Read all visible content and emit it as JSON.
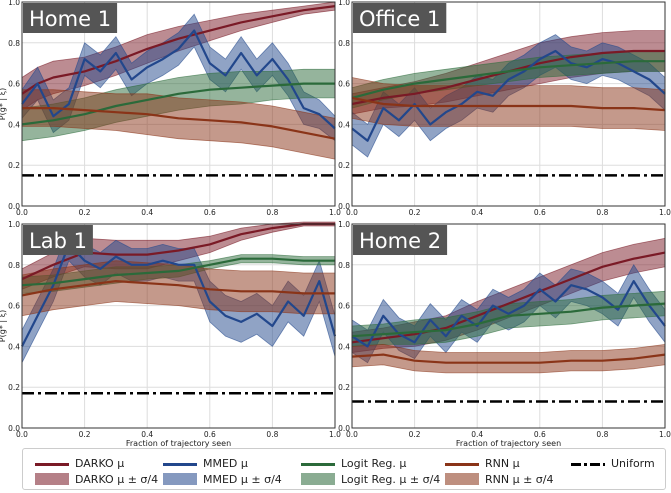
{
  "chart_data": [
    {
      "type": "line",
      "panel_title": "Home 1",
      "ylabel": "P(g* | ξ)",
      "xlabel": "",
      "xlim": [
        0,
        1
      ],
      "ylim": [
        0,
        1
      ],
      "xticks": [
        "0.0",
        "0.2",
        "0.4",
        "0.6",
        "0.8",
        "1.0"
      ],
      "yticks": [
        "0.0",
        "0.2",
        "0.4",
        "0.6",
        "0.8",
        "1.0"
      ],
      "grid": true,
      "series": [
        {
          "name": "DARKO",
          "x": [
            0,
            0.05,
            0.1,
            0.2,
            0.3,
            0.4,
            0.5,
            0.6,
            0.7,
            0.8,
            0.9,
            1.0
          ],
          "values": [
            0.55,
            0.6,
            0.63,
            0.66,
            0.71,
            0.77,
            0.82,
            0.86,
            0.9,
            0.93,
            0.96,
            0.98
          ],
          "band": [
            0.08,
            0.08,
            0.08,
            0.07,
            0.07,
            0.07,
            0.06,
            0.05,
            0.04,
            0.03,
            0.02,
            0.02
          ]
        },
        {
          "name": "MMED",
          "x": [
            0,
            0.05,
            0.1,
            0.15,
            0.2,
            0.25,
            0.3,
            0.35,
            0.4,
            0.45,
            0.5,
            0.55,
            0.6,
            0.65,
            0.7,
            0.75,
            0.8,
            0.85,
            0.9,
            0.95,
            1.0
          ],
          "values": [
            0.5,
            0.6,
            0.44,
            0.5,
            0.72,
            0.66,
            0.75,
            0.62,
            0.68,
            0.72,
            0.77,
            0.86,
            0.7,
            0.64,
            0.75,
            0.64,
            0.72,
            0.62,
            0.48,
            0.45,
            0.38
          ],
          "band": [
            0.07,
            0.08,
            0.08,
            0.08,
            0.08,
            0.08,
            0.08,
            0.08,
            0.08,
            0.08,
            0.08,
            0.08,
            0.08,
            0.08,
            0.08,
            0.08,
            0.08,
            0.08,
            0.08,
            0.07,
            0.06
          ]
        },
        {
          "name": "Logit Reg.",
          "x": [
            0,
            0.1,
            0.2,
            0.3,
            0.4,
            0.5,
            0.6,
            0.7,
            0.8,
            0.9,
            1.0
          ],
          "values": [
            0.4,
            0.42,
            0.45,
            0.49,
            0.52,
            0.55,
            0.57,
            0.58,
            0.59,
            0.6,
            0.6
          ],
          "band": [
            0.08,
            0.08,
            0.08,
            0.08,
            0.08,
            0.08,
            0.08,
            0.08,
            0.07,
            0.07,
            0.07
          ]
        },
        {
          "name": "RNN",
          "x": [
            0,
            0.1,
            0.2,
            0.3,
            0.4,
            0.5,
            0.6,
            0.7,
            0.8,
            0.9,
            1.0
          ],
          "values": [
            0.48,
            0.48,
            0.47,
            0.46,
            0.45,
            0.43,
            0.42,
            0.41,
            0.39,
            0.36,
            0.33
          ],
          "band": [
            0.09,
            0.09,
            0.09,
            0.09,
            0.1,
            0.1,
            0.1,
            0.1,
            0.1,
            0.1,
            0.1
          ]
        },
        {
          "name": "Uniform",
          "x": [
            0,
            1
          ],
          "values": [
            0.15,
            0.15
          ]
        }
      ]
    },
    {
      "type": "line",
      "panel_title": "Office 1",
      "ylabel": "",
      "xlabel": "",
      "xlim": [
        0,
        1
      ],
      "ylim": [
        0,
        1
      ],
      "xticks": [
        "0.0",
        "0.2",
        "0.4",
        "0.6",
        "0.8",
        "1.0"
      ],
      "yticks": [
        "0.0",
        "0.2",
        "0.4",
        "0.6",
        "0.8",
        "1.0"
      ],
      "grid": true,
      "series": [
        {
          "name": "DARKO",
          "x": [
            0,
            0.1,
            0.2,
            0.3,
            0.4,
            0.5,
            0.6,
            0.7,
            0.8,
            0.9,
            1.0
          ],
          "values": [
            0.5,
            0.53,
            0.55,
            0.58,
            0.62,
            0.66,
            0.7,
            0.73,
            0.75,
            0.76,
            0.76
          ],
          "band": [
            0.05,
            0.05,
            0.06,
            0.07,
            0.08,
            0.09,
            0.1,
            0.1,
            0.1,
            0.1,
            0.1
          ]
        },
        {
          "name": "MMED",
          "x": [
            0,
            0.05,
            0.1,
            0.15,
            0.2,
            0.25,
            0.3,
            0.35,
            0.4,
            0.45,
            0.5,
            0.55,
            0.6,
            0.65,
            0.7,
            0.75,
            0.8,
            0.85,
            0.9,
            0.95,
            1.0
          ],
          "values": [
            0.38,
            0.32,
            0.48,
            0.42,
            0.5,
            0.4,
            0.46,
            0.5,
            0.56,
            0.54,
            0.62,
            0.66,
            0.72,
            0.76,
            0.7,
            0.68,
            0.72,
            0.7,
            0.66,
            0.62,
            0.55
          ],
          "band": [
            0.08,
            0.08,
            0.08,
            0.08,
            0.08,
            0.08,
            0.08,
            0.08,
            0.08,
            0.08,
            0.08,
            0.08,
            0.08,
            0.08,
            0.08,
            0.08,
            0.08,
            0.08,
            0.08,
            0.08,
            0.08
          ]
        },
        {
          "name": "Logit Reg.",
          "x": [
            0,
            0.1,
            0.2,
            0.3,
            0.4,
            0.5,
            0.6,
            0.7,
            0.8,
            0.9,
            1.0
          ],
          "values": [
            0.53,
            0.57,
            0.6,
            0.62,
            0.64,
            0.66,
            0.68,
            0.69,
            0.7,
            0.71,
            0.71
          ],
          "band": [
            0.05,
            0.05,
            0.05,
            0.05,
            0.05,
            0.05,
            0.05,
            0.05,
            0.05,
            0.05,
            0.05
          ]
        },
        {
          "name": "RNN",
          "x": [
            0,
            0.1,
            0.2,
            0.3,
            0.4,
            0.5,
            0.6,
            0.7,
            0.8,
            0.9,
            1.0
          ],
          "values": [
            0.53,
            0.5,
            0.49,
            0.49,
            0.49,
            0.49,
            0.49,
            0.49,
            0.48,
            0.48,
            0.47
          ],
          "band": [
            0.1,
            0.1,
            0.1,
            0.1,
            0.1,
            0.1,
            0.1,
            0.1,
            0.1,
            0.1,
            0.1
          ]
        },
        {
          "name": "Uniform",
          "x": [
            0,
            1
          ],
          "values": [
            0.15,
            0.15
          ]
        }
      ]
    },
    {
      "type": "line",
      "panel_title": "Lab 1",
      "ylabel": "P(g* | ξ)",
      "xlabel": "Fraction of trajectory seen",
      "xlim": [
        0,
        1
      ],
      "ylim": [
        0,
        1
      ],
      "xticks": [
        "0.0",
        "0.2",
        "0.4",
        "0.6",
        "0.8",
        "1.0"
      ],
      "yticks": [
        "0.0",
        "0.2",
        "0.4",
        "0.6",
        "0.8",
        "1.0"
      ],
      "grid": true,
      "series": [
        {
          "name": "DARKO",
          "x": [
            0,
            0.1,
            0.2,
            0.3,
            0.4,
            0.5,
            0.6,
            0.7,
            0.8,
            0.9,
            1.0
          ],
          "values": [
            0.73,
            0.8,
            0.86,
            0.85,
            0.85,
            0.87,
            0.9,
            0.95,
            0.98,
            1.0,
            1.0
          ],
          "band": [
            0.05,
            0.06,
            0.07,
            0.07,
            0.07,
            0.05,
            0.04,
            0.03,
            0.02,
            0.01,
            0.01
          ]
        },
        {
          "name": "MMED",
          "x": [
            0,
            0.05,
            0.1,
            0.15,
            0.2,
            0.25,
            0.3,
            0.35,
            0.4,
            0.45,
            0.5,
            0.55,
            0.6,
            0.65,
            0.7,
            0.75,
            0.8,
            0.85,
            0.9,
            0.95,
            1.0
          ],
          "values": [
            0.4,
            0.55,
            0.7,
            0.9,
            0.82,
            0.78,
            0.84,
            0.8,
            0.8,
            0.82,
            0.8,
            0.8,
            0.62,
            0.55,
            0.52,
            0.56,
            0.5,
            0.62,
            0.55,
            0.72,
            0.45
          ],
          "band": [
            0.08,
            0.08,
            0.08,
            0.08,
            0.08,
            0.08,
            0.08,
            0.08,
            0.08,
            0.08,
            0.08,
            0.08,
            0.1,
            0.1,
            0.1,
            0.1,
            0.1,
            0.1,
            0.1,
            0.1,
            0.1
          ]
        },
        {
          "name": "Logit Reg.",
          "x": [
            0,
            0.1,
            0.2,
            0.3,
            0.4,
            0.5,
            0.6,
            0.7,
            0.8,
            0.9,
            1.0
          ],
          "values": [
            0.7,
            0.71,
            0.73,
            0.75,
            0.76,
            0.77,
            0.8,
            0.83,
            0.83,
            0.82,
            0.82
          ],
          "band": [
            0.04,
            0.04,
            0.04,
            0.04,
            0.03,
            0.03,
            0.02,
            0.02,
            0.02,
            0.02,
            0.02
          ]
        },
        {
          "name": "RNN",
          "x": [
            0,
            0.1,
            0.2,
            0.3,
            0.4,
            0.5,
            0.6,
            0.7,
            0.8,
            0.9,
            1.0
          ],
          "values": [
            0.65,
            0.68,
            0.7,
            0.72,
            0.71,
            0.7,
            0.68,
            0.67,
            0.67,
            0.66,
            0.66
          ],
          "band": [
            0.1,
            0.1,
            0.1,
            0.1,
            0.1,
            0.1,
            0.1,
            0.1,
            0.1,
            0.1,
            0.1
          ]
        },
        {
          "name": "Uniform",
          "x": [
            0,
            1
          ],
          "values": [
            0.17,
            0.17
          ]
        }
      ]
    },
    {
      "type": "line",
      "panel_title": "Home 2",
      "ylabel": "",
      "xlabel": "Fraction of trajectory seen",
      "xlim": [
        0,
        1
      ],
      "ylim": [
        0,
        1
      ],
      "xticks": [
        "0.0",
        "0.2",
        "0.4",
        "0.6",
        "0.8",
        "1.0"
      ],
      "yticks": [
        "0.0",
        "0.2",
        "0.4",
        "0.6",
        "0.8",
        "1.0"
      ],
      "grid": true,
      "series": [
        {
          "name": "DARKO",
          "x": [
            0,
            0.1,
            0.2,
            0.3,
            0.4,
            0.5,
            0.6,
            0.7,
            0.8,
            0.9,
            1.0
          ],
          "values": [
            0.42,
            0.44,
            0.46,
            0.49,
            0.55,
            0.61,
            0.67,
            0.73,
            0.79,
            0.83,
            0.86
          ],
          "band": [
            0.05,
            0.05,
            0.06,
            0.06,
            0.07,
            0.07,
            0.07,
            0.07,
            0.07,
            0.07,
            0.07
          ]
        },
        {
          "name": "MMED",
          "x": [
            0,
            0.05,
            0.1,
            0.15,
            0.2,
            0.25,
            0.3,
            0.35,
            0.4,
            0.45,
            0.5,
            0.55,
            0.6,
            0.65,
            0.7,
            0.75,
            0.8,
            0.85,
            0.9,
            0.95,
            1.0
          ],
          "values": [
            0.45,
            0.4,
            0.55,
            0.46,
            0.42,
            0.53,
            0.45,
            0.55,
            0.5,
            0.6,
            0.56,
            0.6,
            0.68,
            0.62,
            0.7,
            0.68,
            0.64,
            0.58,
            0.72,
            0.6,
            0.5
          ],
          "band": [
            0.08,
            0.08,
            0.08,
            0.08,
            0.08,
            0.08,
            0.08,
            0.08,
            0.08,
            0.08,
            0.08,
            0.08,
            0.08,
            0.08,
            0.08,
            0.08,
            0.08,
            0.08,
            0.08,
            0.08,
            0.08
          ]
        },
        {
          "name": "Logit Reg.",
          "x": [
            0,
            0.1,
            0.2,
            0.3,
            0.4,
            0.5,
            0.6,
            0.7,
            0.8,
            0.9,
            1.0
          ],
          "values": [
            0.45,
            0.46,
            0.47,
            0.48,
            0.51,
            0.55,
            0.56,
            0.57,
            0.59,
            0.6,
            0.61
          ],
          "band": [
            0.05,
            0.05,
            0.06,
            0.06,
            0.06,
            0.06,
            0.06,
            0.06,
            0.06,
            0.06,
            0.06
          ]
        },
        {
          "name": "RNN",
          "x": [
            0,
            0.1,
            0.2,
            0.3,
            0.4,
            0.5,
            0.6,
            0.7,
            0.8,
            0.9,
            1.0
          ],
          "values": [
            0.35,
            0.36,
            0.33,
            0.32,
            0.32,
            0.32,
            0.32,
            0.33,
            0.33,
            0.34,
            0.36
          ],
          "band": [
            0.05,
            0.05,
            0.05,
            0.05,
            0.05,
            0.05,
            0.05,
            0.05,
            0.05,
            0.05,
            0.05
          ]
        },
        {
          "name": "Uniform",
          "x": [
            0,
            1
          ],
          "values": [
            0.13,
            0.13
          ]
        }
      ]
    }
  ],
  "colors": {
    "DARKO": "#7a1a26",
    "MMED": "#22478c",
    "Logit Reg.": "#2b6a3a",
    "RNN": "#8a3418",
    "Uniform": "#000000"
  },
  "legend": {
    "items": [
      {
        "key": "DARKO",
        "line_label": "DARKO μ",
        "band_label": "DARKO μ ± σ/4"
      },
      {
        "key": "MMED",
        "line_label": "MMED μ",
        "band_label": "MMED μ ± σ/4"
      },
      {
        "key": "Logit Reg.",
        "line_label": "Logit Reg. μ",
        "band_label": "Logit Reg. μ ± σ/4"
      },
      {
        "key": "RNN",
        "line_label": "RNN μ",
        "band_label": "RNN μ ± σ/4"
      },
      {
        "key": "Uniform",
        "line_label": "Uniform"
      }
    ]
  }
}
